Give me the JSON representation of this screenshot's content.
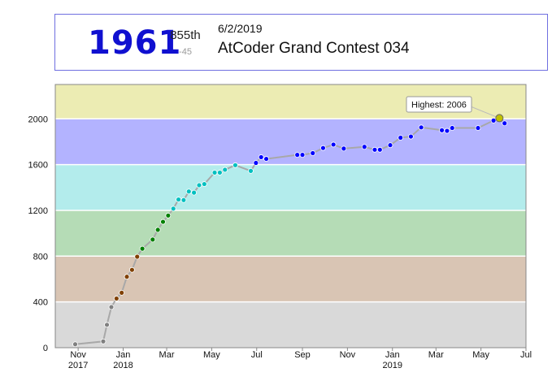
{
  "status": {
    "rating": "1961",
    "rank": "855th",
    "delta": "-45",
    "date": "6/2/2019",
    "contest": "AtCoder Grand Contest 034"
  },
  "colors": {
    "rating_text": "#1010d0",
    "bands": {
      "gray": "#d9d9d9",
      "brown": "#d9c5b4",
      "green": "#b5dcb6",
      "cyan": "#b3ecec",
      "blue": "#b3b3ff",
      "yellow": "#ececb3"
    },
    "points": {
      "gray": "#808080",
      "brown": "#804000",
      "green": "#008000",
      "cyan": "#00c0c0",
      "blue": "#0000ff",
      "yellow": "#c0c000"
    }
  },
  "chart_data": {
    "type": "line",
    "x_start": "2017-10-01",
    "x_end": "2019-07-01",
    "ylim": [
      0,
      2300
    ],
    "yticks": [
      0,
      400,
      800,
      1200,
      1600,
      2000
    ],
    "xticks": [
      {
        "date": "2017-11-01",
        "label": "Nov",
        "year": "2017"
      },
      {
        "date": "2018-01-01",
        "label": "Jan",
        "year": "2018"
      },
      {
        "date": "2018-03-01",
        "label": "Mar",
        "year": ""
      },
      {
        "date": "2018-05-01",
        "label": "May",
        "year": ""
      },
      {
        "date": "2018-07-01",
        "label": "Jul",
        "year": ""
      },
      {
        "date": "2018-09-01",
        "label": "Sep",
        "year": ""
      },
      {
        "date": "2018-11-01",
        "label": "Nov",
        "year": ""
      },
      {
        "date": "2019-01-01",
        "label": "Jan",
        "year": "2019"
      },
      {
        "date": "2019-03-01",
        "label": "Mar",
        "year": ""
      },
      {
        "date": "2019-05-01",
        "label": "May",
        "year": ""
      },
      {
        "date": "2019-07-01",
        "label": "Jul",
        "year": ""
      }
    ],
    "bands": [
      {
        "from": 0,
        "to": 400,
        "color": "gray"
      },
      {
        "from": 400,
        "to": 800,
        "color": "brown"
      },
      {
        "from": 800,
        "to": 1200,
        "color": "green"
      },
      {
        "from": 1200,
        "to": 1600,
        "color": "cyan"
      },
      {
        "from": 1600,
        "to": 2000,
        "color": "blue"
      },
      {
        "from": 2000,
        "to": 2400,
        "color": "yellow"
      }
    ],
    "points": [
      [
        "2017-10-28",
        30
      ],
      [
        "2017-12-05",
        55
      ],
      [
        "2017-12-10",
        200
      ],
      [
        "2017-12-16",
        355
      ],
      [
        "2017-12-23",
        430
      ],
      [
        "2017-12-30",
        480
      ],
      [
        "2018-01-06",
        620
      ],
      [
        "2018-01-13",
        680
      ],
      [
        "2018-01-20",
        795
      ],
      [
        "2018-01-27",
        865
      ],
      [
        "2018-02-10",
        945
      ],
      [
        "2018-02-17",
        1030
      ],
      [
        "2018-02-24",
        1100
      ],
      [
        "2018-03-03",
        1155
      ],
      [
        "2018-03-10",
        1215
      ],
      [
        "2018-03-17",
        1295
      ],
      [
        "2018-03-24",
        1290
      ],
      [
        "2018-03-31",
        1365
      ],
      [
        "2018-04-07",
        1355
      ],
      [
        "2018-04-14",
        1420
      ],
      [
        "2018-04-21",
        1430
      ],
      [
        "2018-05-05",
        1530
      ],
      [
        "2018-05-12",
        1530
      ],
      [
        "2018-05-19",
        1555
      ],
      [
        "2018-06-02",
        1595
      ],
      [
        "2018-06-23",
        1545
      ],
      [
        "2018-06-30",
        1615
      ],
      [
        "2018-07-07",
        1665
      ],
      [
        "2018-07-14",
        1650
      ],
      [
        "2018-08-25",
        1685
      ],
      [
        "2018-09-01",
        1685
      ],
      [
        "2018-09-15",
        1700
      ],
      [
        "2018-09-29",
        1745
      ],
      [
        "2018-10-13",
        1775
      ],
      [
        "2018-10-27",
        1740
      ],
      [
        "2018-11-24",
        1755
      ],
      [
        "2018-12-08",
        1730
      ],
      [
        "2018-12-15",
        1730
      ],
      [
        "2018-12-29",
        1770
      ],
      [
        "2019-01-12",
        1835
      ],
      [
        "2019-01-26",
        1845
      ],
      [
        "2019-02-09",
        1925
      ],
      [
        "2019-03-09",
        1900
      ],
      [
        "2019-03-16",
        1895
      ],
      [
        "2019-03-23",
        1920
      ],
      [
        "2019-04-27",
        1920
      ],
      [
        "2019-05-18",
        1985
      ],
      [
        "2019-05-26",
        2006
      ],
      [
        "2019-06-02",
        1961
      ]
    ],
    "highest": {
      "date": "2019-05-26",
      "value": 2006,
      "label": "Highest: 2006"
    }
  }
}
